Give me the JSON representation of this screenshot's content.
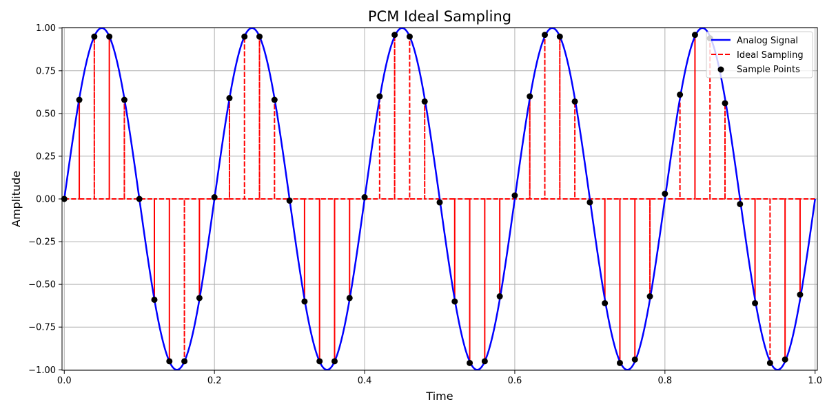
{
  "chart_data": {
    "type": "line",
    "title": "PCM Ideal Sampling",
    "xlabel": "Time",
    "ylabel": "Amplitude",
    "xlim": [
      0,
      1
    ],
    "ylim": [
      -1,
      1
    ],
    "grid": true,
    "legend_placement": "top-right",
    "x_ticks": [
      "0.0",
      "0.2",
      "0.4",
      "0.6",
      "0.8",
      "1.0"
    ],
    "x_tick_values": [
      0,
      0.2,
      0.4,
      0.6,
      0.8,
      1.0
    ],
    "y_ticks": [
      "−1.00",
      "−0.75",
      "−0.50",
      "−0.25",
      "0.00",
      "0.25",
      "0.50",
      "0.75",
      "1.00"
    ],
    "y_tick_values": [
      -1,
      -0.75,
      -0.5,
      -0.25,
      0,
      0.25,
      0.5,
      0.75,
      1
    ],
    "series": [
      {
        "name": "Analog Signal",
        "style": "solid-line",
        "color": "#0000ff",
        "signal": {
          "function": "sine",
          "frequency": 5,
          "amplitude": 1
        }
      },
      {
        "name": "Ideal Sampling",
        "style": "dashed-stems",
        "color": "#ff0000"
      },
      {
        "name": "Sample Points",
        "style": "markers",
        "color": "#000000",
        "x": [
          0,
          0.02,
          0.04,
          0.06,
          0.08,
          0.1,
          0.12,
          0.14,
          0.16,
          0.18,
          0.2,
          0.22,
          0.24,
          0.26,
          0.28,
          0.3,
          0.32,
          0.34,
          0.36,
          0.38,
          0.4,
          0.42,
          0.44,
          0.46,
          0.48,
          0.5,
          0.52,
          0.54,
          0.56,
          0.58,
          0.6,
          0.62,
          0.64,
          0.66,
          0.68,
          0.7,
          0.72,
          0.74,
          0.76,
          0.78,
          0.8,
          0.82,
          0.84,
          0.86,
          0.88,
          0.9,
          0.92,
          0.94,
          0.96,
          0.98
        ],
        "y": [
          0.0,
          0.58,
          0.95,
          0.95,
          0.58,
          0.0,
          -0.59,
          -0.95,
          -0.95,
          -0.58,
          0.01,
          0.59,
          0.95,
          0.95,
          0.58,
          -0.01,
          -0.6,
          -0.95,
          -0.95,
          -0.58,
          0.01,
          0.6,
          0.96,
          0.95,
          0.57,
          -0.02,
          -0.6,
          -0.96,
          -0.95,
          -0.57,
          0.02,
          0.6,
          0.96,
          0.95,
          0.57,
          -0.02,
          -0.61,
          -0.96,
          -0.94,
          -0.57,
          0.03,
          0.61,
          0.96,
          0.94,
          0.56,
          -0.03,
          -0.61,
          -0.96,
          -0.94,
          -0.56
        ]
      }
    ]
  }
}
